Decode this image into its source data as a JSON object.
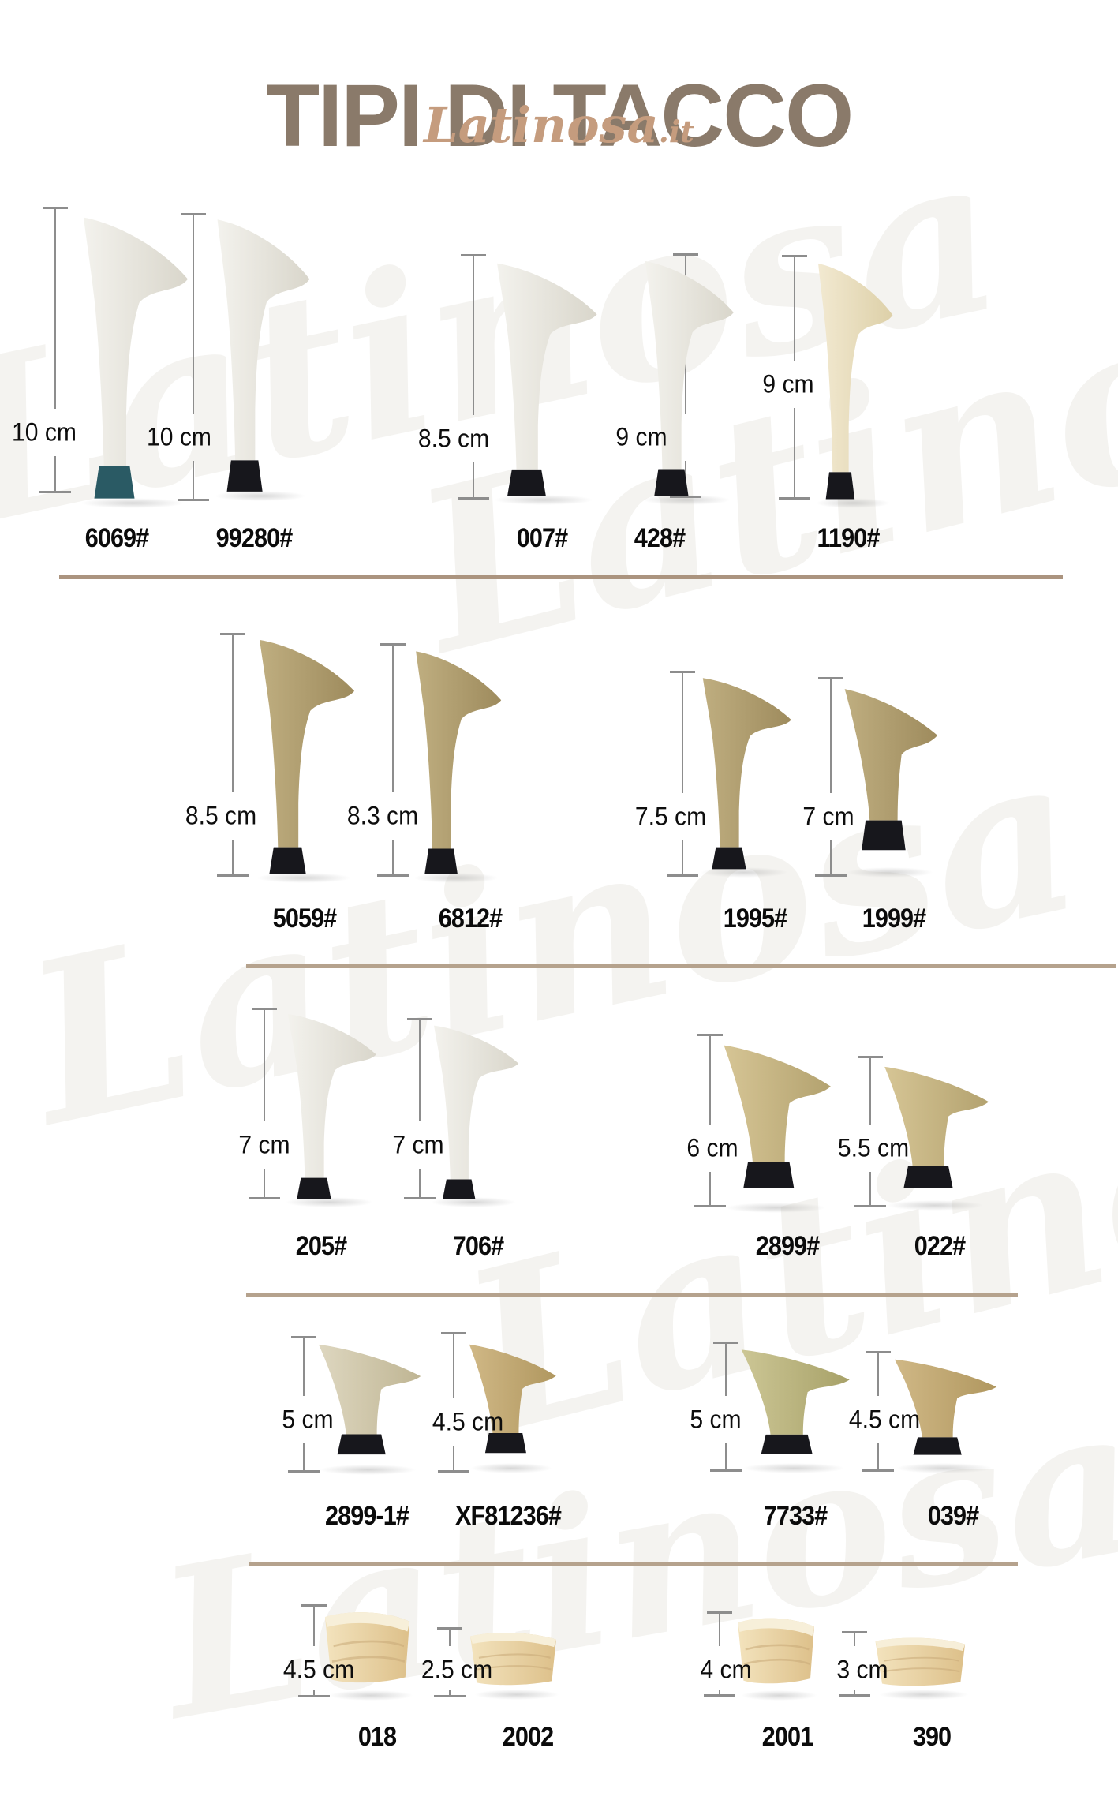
{
  "title": "TIPI DI TACCO",
  "brand": {
    "script": "Latinosa",
    "tld": ".it"
  },
  "watermark": "Latinosa",
  "colors": {
    "title": "#8a7a6a",
    "brand": "#c59c7e",
    "divider_top": "#ab947f",
    "divider": "#b5a28d",
    "measure_line": "#8d8d8d",
    "label_text": "#0d0d0d",
    "tip_black": "#17171c",
    "tip_teal": "#2a5a64",
    "body_ivory": [
      "#f3f2ed",
      "#d9d6cb"
    ],
    "body_cream": [
      "#f2e9d1",
      "#ddd0a8"
    ],
    "body_khaki": [
      "#bfae80",
      "#9e8b5d"
    ],
    "body_khaki_light": [
      "#d6c595",
      "#b3a26f"
    ],
    "body_beige": [
      "#ded7c0",
      "#bfb593"
    ],
    "body_tan": [
      "#d0b886",
      "#b0975f"
    ],
    "body_olive": [
      "#ccc695",
      "#a7a168"
    ],
    "wood_light": "#f3e3bd",
    "wood_dark": "#ddc08a",
    "wood_top": "#f7efd9",
    "wood_grain": "#c9a979"
  },
  "rows": [
    {
      "items": [
        {
          "model": "6069#",
          "size": "10 cm",
          "type": "stiletto",
          "body": "ivory",
          "tip": "teal"
        },
        {
          "model": "99280#",
          "size": "10 cm",
          "type": "stiletto",
          "body": "ivory",
          "tip": "black"
        },
        {
          "model": "007#",
          "size": "8.5 cm",
          "type": "stiletto",
          "body": "ivory",
          "tip": "black"
        },
        {
          "model": "428#",
          "size": "9 cm",
          "type": "stiletto",
          "body": "ivory",
          "tip": "black"
        },
        {
          "model": "1190#",
          "size": "9 cm",
          "type": "stiletto",
          "body": "cream",
          "tip": "black"
        }
      ]
    },
    {
      "items": [
        {
          "model": "5059#",
          "size": "8.5 cm",
          "type": "stiletto",
          "body": "khaki",
          "tip": "black"
        },
        {
          "model": "6812#",
          "size": "8.3 cm",
          "type": "stiletto",
          "body": "khaki",
          "tip": "black"
        },
        {
          "model": "1995#",
          "size": "7.5 cm",
          "type": "stiletto",
          "body": "khaki",
          "tip": "black"
        },
        {
          "model": "1999#",
          "size": "7 cm",
          "type": "kitten",
          "body": "khaki",
          "tip": "black"
        }
      ]
    },
    {
      "items": [
        {
          "model": "205#",
          "size": "7 cm",
          "type": "stiletto",
          "body": "ivory",
          "tip": "black"
        },
        {
          "model": "706#",
          "size": "7 cm",
          "type": "stiletto",
          "body": "ivory",
          "tip": "black"
        },
        {
          "model": "2899#",
          "size": "6 cm",
          "type": "kitten",
          "body": "khaki_light",
          "tip": "black"
        },
        {
          "model": "022#",
          "size": "5.5 cm",
          "type": "kitten",
          "body": "khaki_light",
          "tip": "black"
        }
      ]
    },
    {
      "items": [
        {
          "model": "2899-1#",
          "size": "5 cm",
          "type": "kitten",
          "body": "beige",
          "tip": "black"
        },
        {
          "model": "XF81236#",
          "size": "4.5 cm",
          "type": "kitten",
          "body": "tan",
          "tip": "black"
        },
        {
          "model": "7733#",
          "size": "5 cm",
          "type": "kitten",
          "body": "olive",
          "tip": "black"
        },
        {
          "model": "039#",
          "size": "4.5 cm",
          "type": "kitten",
          "body": "tan",
          "tip": "black"
        }
      ]
    },
    {
      "items": [
        {
          "model": "018",
          "size": "4.5 cm",
          "type": "wedge",
          "body": "wood"
        },
        {
          "model": "2002",
          "size": "2.5 cm",
          "type": "wedge",
          "body": "wood"
        },
        {
          "model": "2001",
          "size": "4 cm",
          "type": "wedge",
          "body": "wood"
        },
        {
          "model": "390",
          "size": "3 cm",
          "type": "wedge",
          "body": "wood"
        }
      ]
    }
  ]
}
